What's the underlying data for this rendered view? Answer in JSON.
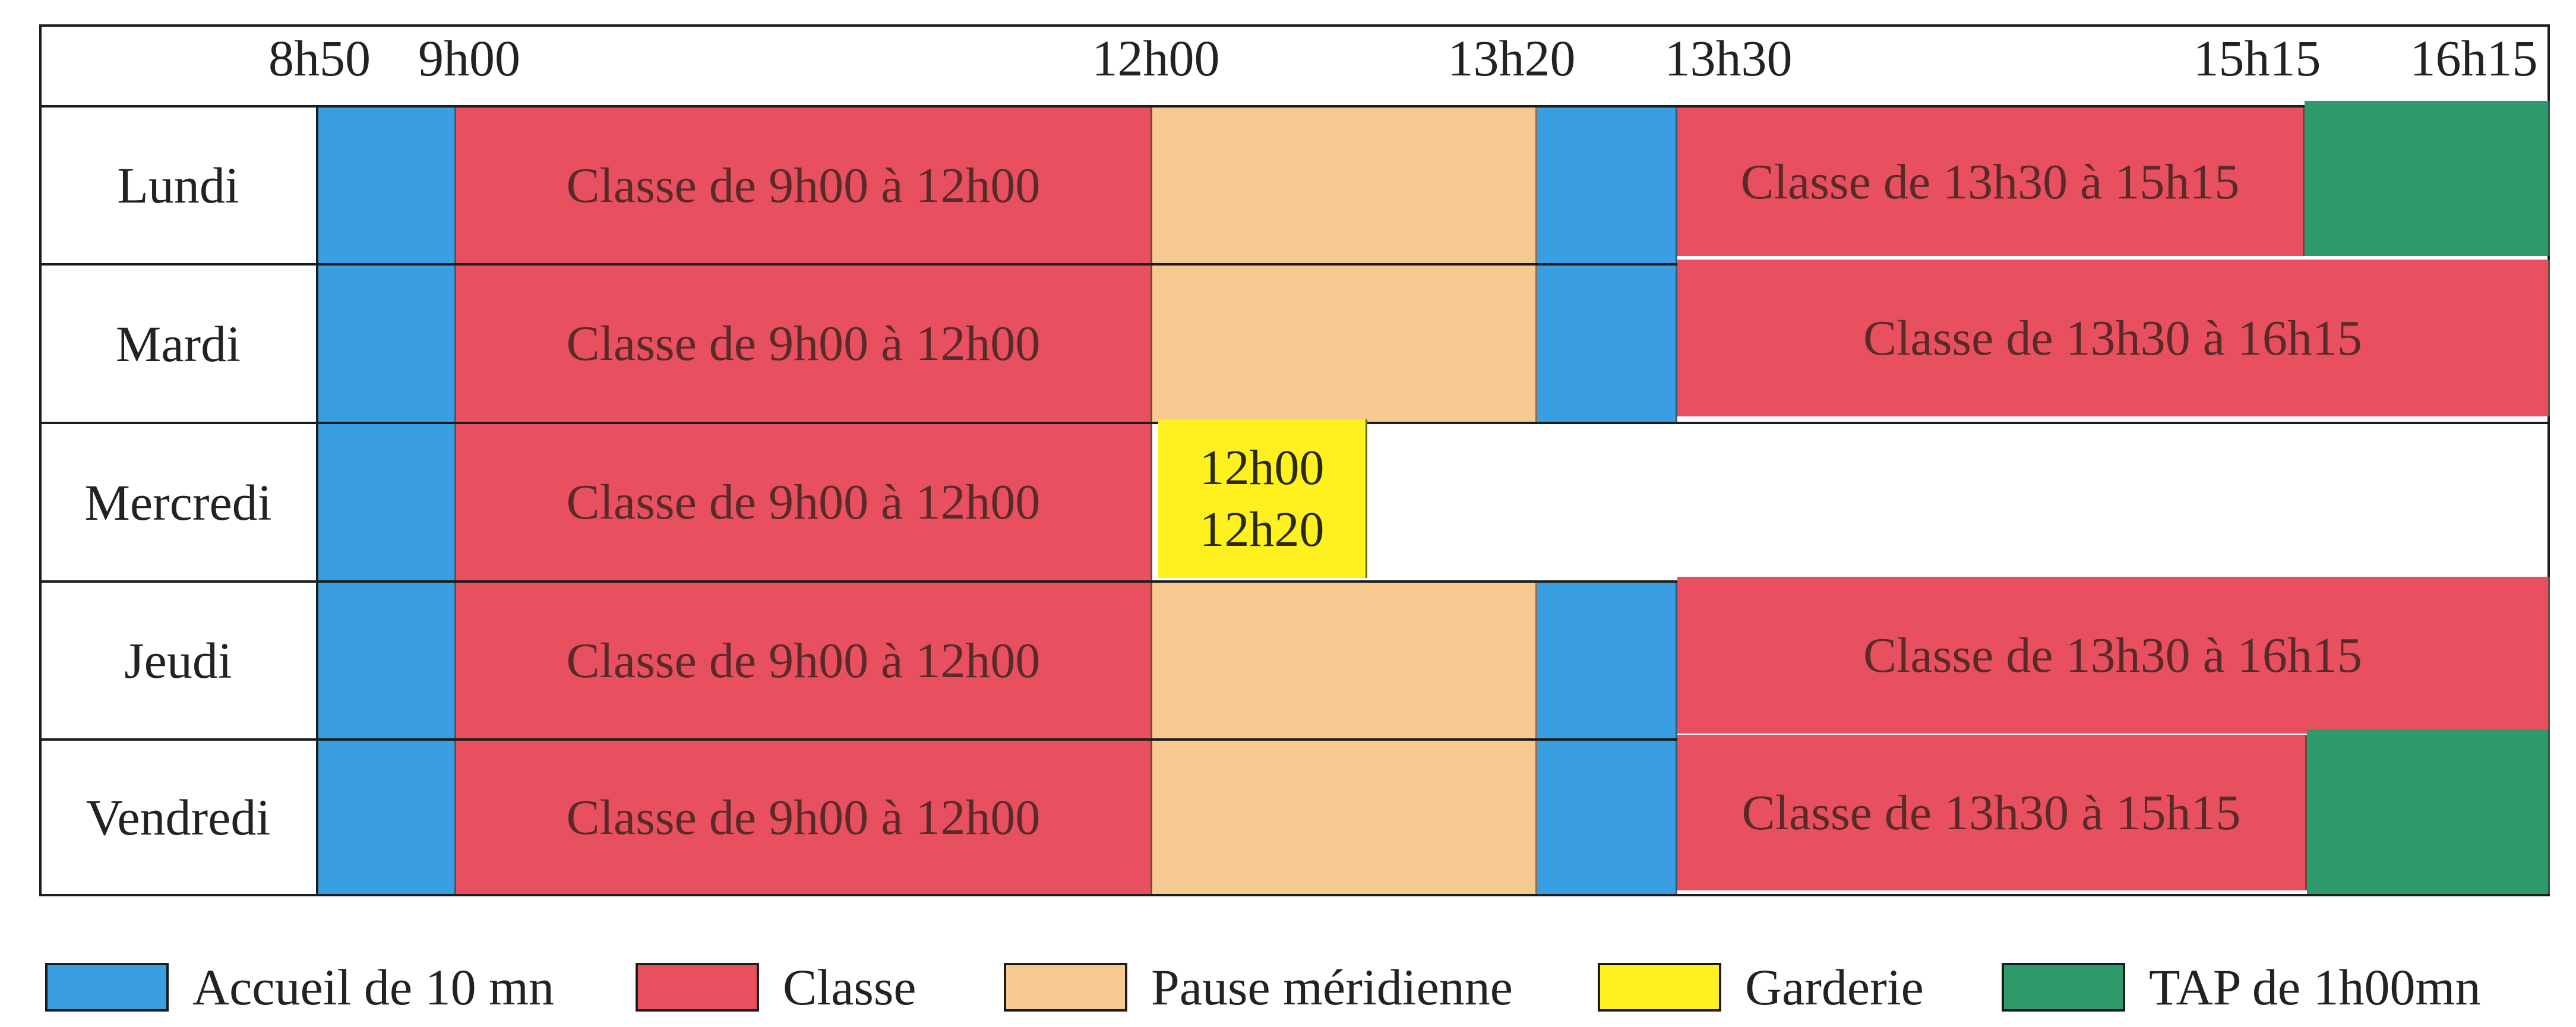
{
  "times": [
    "8h50",
    "9h00",
    "12h00",
    "13h20",
    "13h30",
    "15h15",
    "16h15"
  ],
  "days": [
    "Lundi",
    "Mardi",
    "Mercredi",
    "Jeudi",
    "Vendredi"
  ],
  "class_morning": "Classe de 9h00 à 12h00",
  "class_afternoon_short": "Classe de 13h30 à 15h15",
  "class_afternoon_long": "Classe de 13h30 à 16h15",
  "garderie_start": "12h00",
  "garderie_end": "12h20",
  "legend": [
    {
      "label": "Accueil de 10 mn",
      "color": "#3a9fe0"
    },
    {
      "label": "Classe",
      "color": "#e8505f"
    },
    {
      "label": "Pause méridienne",
      "color": "#f5c98f"
    },
    {
      "label": "Garderie",
      "color": "#fff01f"
    },
    {
      "label": "TAP de 1h00mn",
      "color": "#2d9a6c"
    }
  ]
}
